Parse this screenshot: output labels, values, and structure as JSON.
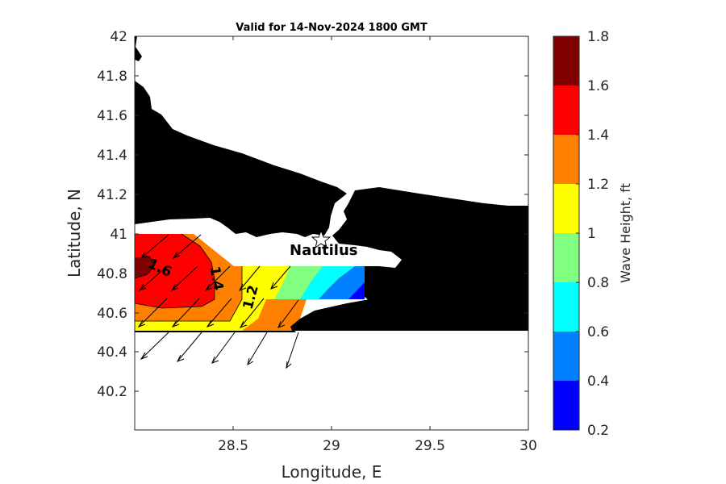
{
  "title": "Valid for 14-Nov-2024 1800 GMT",
  "xlabel": "Longitude, E",
  "ylabel": "Latitude, N",
  "colorbar_label": "Wave Height, ft",
  "place_label": "Nautilus",
  "colors": {
    "land": "#000000",
    "sea": "#ffffff",
    "axes": "#262626"
  },
  "chart_data": {
    "type": "heatmap",
    "xlim": [
      28.0,
      30.0
    ],
    "ylim": [
      40.0,
      42.0
    ],
    "x_ticks": [
      "28.5",
      "29",
      "29.5",
      "30"
    ],
    "y_ticks": [
      "42",
      "41.8",
      "41.6",
      "41.4",
      "41.2",
      "41",
      "40.8",
      "40.6",
      "40.4",
      "40.2"
    ],
    "colorbar": {
      "min": 0.2,
      "max": 1.8,
      "ticks": [
        "1.8",
        "1.6",
        "1.4",
        "1.2",
        "1",
        "0.8",
        "0.6",
        "0.4",
        "0.2"
      ],
      "levels": [
        {
          "from": 0.2,
          "to": 0.4,
          "color": "#0000ff"
        },
        {
          "from": 0.4,
          "to": 0.6,
          "color": "#0080ff"
        },
        {
          "from": 0.6,
          "to": 0.8,
          "color": "#00ffff"
        },
        {
          "from": 0.8,
          "to": 1.0,
          "color": "#80ff80"
        },
        {
          "from": 1.0,
          "to": 1.2,
          "color": "#ffff00"
        },
        {
          "from": 1.2,
          "to": 1.4,
          "color": "#ff8000"
        },
        {
          "from": 1.4,
          "to": 1.6,
          "color": "#ff0000"
        },
        {
          "from": 1.6,
          "to": 1.8,
          "color": "#800000"
        }
      ]
    },
    "contour_labels": [
      "1.6",
      "1.4",
      "1.2"
    ],
    "station": {
      "name": "Nautilus",
      "lon": 28.95,
      "lat": 40.97
    }
  }
}
